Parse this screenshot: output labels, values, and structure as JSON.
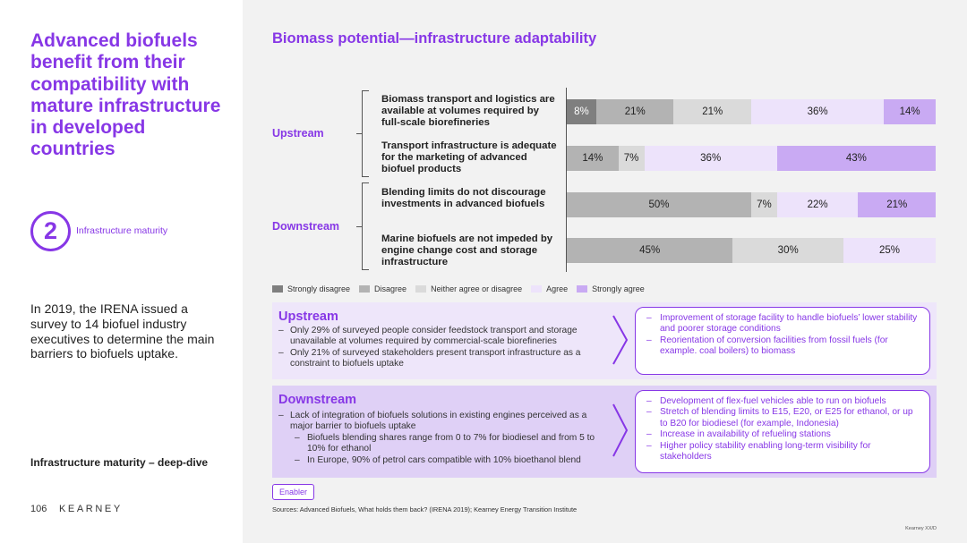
{
  "headline": "Advanced biofuels benefit from their compatibility with mature infrastructure in developed countries",
  "step": {
    "number": "2",
    "label": "Infrastructure maturity"
  },
  "intro": "In 2019, the IRENA issued a survey to 14 biofuel industry executives to determine the main barriers to biofuels uptake.",
  "section_title": "Infrastructure maturity – deep-dive",
  "page_number": "106",
  "logo": "KEARNEY",
  "chart_title": "Biomass potential—infrastructure adaptability",
  "groups": {
    "upstream": "Upstream",
    "downstream": "Downstream"
  },
  "colors": {
    "strongly_disagree": "#7f7f7f",
    "disagree": "#b3b3b3",
    "neutral": "#dadada",
    "agree": "#ede3fb",
    "strongly_agree": "#c9aaf3",
    "accent": "#8737e6"
  },
  "chart_data": {
    "type": "bar",
    "stacked": true,
    "orientation": "horizontal",
    "percent_scale": [
      0,
      100
    ],
    "categories": [
      "Biomass transport and logistics are available at volumes required by full-scale biorefineries",
      "Transport infrastructure is adequate for the marketing of advanced biofuel products",
      "Blending limits do not discourage investments in advanced biofuels",
      "Marine biofuels are not impeded by engine change cost and storage infrastructure"
    ],
    "series": [
      {
        "name": "Strongly disagree",
        "values": [
          8,
          0,
          0,
          0
        ]
      },
      {
        "name": "Disagree",
        "values": [
          21,
          14,
          50,
          45
        ]
      },
      {
        "name": "Neither agree or disagree",
        "values": [
          21,
          7,
          7,
          30
        ]
      },
      {
        "name": "Agree",
        "values": [
          36,
          36,
          22,
          25
        ]
      },
      {
        "name": "Strongly agree",
        "values": [
          14,
          43,
          21,
          0
        ]
      }
    ],
    "value_labels": [
      [
        "8%",
        "21%",
        "21%",
        "36%",
        "14%"
      ],
      [
        "",
        "14%",
        "7%",
        "36%",
        "43%"
      ],
      [
        "",
        "50%",
        "7%",
        "22%",
        "21%"
      ],
      [
        "",
        "45%",
        "30%",
        "25%",
        ""
      ]
    ],
    "legend_position": "bottom-left"
  },
  "legend": [
    "Strongly disagree",
    "Disagree",
    "Neither agree or disagree",
    "Agree",
    "Strongly agree"
  ],
  "panels": {
    "upstream": {
      "title": "Upstream",
      "findings": [
        "Only 29% of surveyed people consider feedstock transport and storage unavailable at volumes required by commercial-scale biorefineries",
        "Only 21% of surveyed stakeholders present transport infrastructure as a constraint to biofuels uptake"
      ],
      "enablers": [
        "Improvement of storage facility to handle biofuels’ lower stability and poorer storage conditions",
        "Reorientation of conversion facilities from fossil fuels (for example. coal boilers) to biomass"
      ]
    },
    "downstream": {
      "title": "Downstream",
      "findings": [
        "Lack of integration of biofuels solutions in existing engines perceived as a major barrier to biofuels uptake",
        "Biofuels blending shares range from 0 to 7% for biodiesel and from 5 to 10% for ethanol",
        "In Europe, 90% of petrol cars compatible with 10% bioethanol blend"
      ],
      "enablers": [
        "Development of flex-fuel vehicles able to run on biofuels",
        "Stretch of blending limits to E15, E20, or E25 for ethanol, or up to B20 for biodiesel (for example, Indonesia)",
        "Increase in availability of refueling stations",
        "Higher policy stability enabling long-term visibility for stakeholders"
      ]
    }
  },
  "enabler_tag": "Enabler",
  "sources": "Sources: Advanced Biofuels, What holds them back? (IRENA 2019); Kearney Energy Transition Institute",
  "footer_right": "Kearney XX/D"
}
